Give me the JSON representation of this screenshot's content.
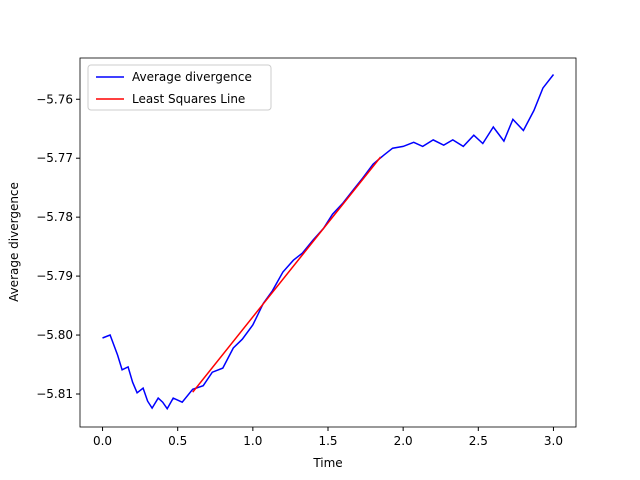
{
  "chart_data": {
    "type": "line",
    "xlabel": "Time",
    "ylabel": "Average divergence",
    "xlim": [
      -0.15,
      3.15
    ],
    "ylim": [
      -5.8156,
      -5.753
    ],
    "xticks": [
      {
        "value": 0,
        "label": "0.0"
      },
      0.5,
      {
        "value": 1,
        "label": "1.0"
      },
      1.5,
      {
        "value": 2,
        "label": "2.0"
      },
      2.5,
      {
        "value": 3,
        "label": "3.0"
      }
    ],
    "yticks": [
      {
        "value": -5.81,
        "label": "−5.81"
      },
      {
        "value": -5.8,
        "label": "−5.80"
      },
      {
        "value": -5.79,
        "label": "−5.79"
      },
      {
        "value": -5.78,
        "label": "−5.78"
      },
      {
        "value": -5.77,
        "label": "−5.77"
      },
      {
        "value": -5.76,
        "label": "−5.76"
      }
    ],
    "legend": "upper left",
    "series": [
      {
        "name": "Average divergence",
        "color": "#0000ff",
        "x": [
          0,
          0.05,
          0.1,
          0.13,
          0.17,
          0.2,
          0.23,
          0.27,
          0.3,
          0.33,
          0.37,
          0.4,
          0.43,
          0.47,
          0.53,
          0.6,
          0.67,
          0.73,
          0.8,
          0.87,
          0.93,
          1.0,
          1.07,
          1.13,
          1.2,
          1.27,
          1.33,
          1.4,
          1.47,
          1.53,
          1.6,
          1.67,
          1.73,
          1.8,
          1.87,
          1.93,
          2.0,
          2.07,
          2.13,
          2.2,
          2.27,
          2.33,
          2.4,
          2.47,
          2.53,
          2.6,
          2.67,
          2.73,
          2.8,
          2.87,
          2.93,
          3.0
        ],
        "values": [
          -5.8005,
          -5.8,
          -5.8034,
          -5.8059,
          -5.8054,
          -5.808,
          -5.8098,
          -5.809,
          -5.8112,
          -5.8124,
          -5.8107,
          -5.8114,
          -5.8125,
          -5.8107,
          -5.8114,
          -5.8092,
          -5.8086,
          -5.8063,
          -5.8056,
          -5.8022,
          -5.8007,
          -5.7983,
          -5.7946,
          -5.7925,
          -5.7893,
          -5.7873,
          -5.7861,
          -5.7839,
          -5.7819,
          -5.7795,
          -5.7776,
          -5.7753,
          -5.7734,
          -5.771,
          -5.7695,
          -5.7683,
          -5.768,
          -5.7673,
          -5.768,
          -5.7669,
          -5.7678,
          -5.7669,
          -5.768,
          -5.7661,
          -5.7675,
          -5.7647,
          -5.7671,
          -5.7634,
          -5.7653,
          -5.7619,
          -5.7581,
          -5.7558
        ]
      },
      {
        "name": "Least Squares Line",
        "color": "#ff0000",
        "x": [
          0.6,
          1.85
        ],
        "values": [
          -5.8097,
          -5.7698
        ]
      }
    ]
  }
}
